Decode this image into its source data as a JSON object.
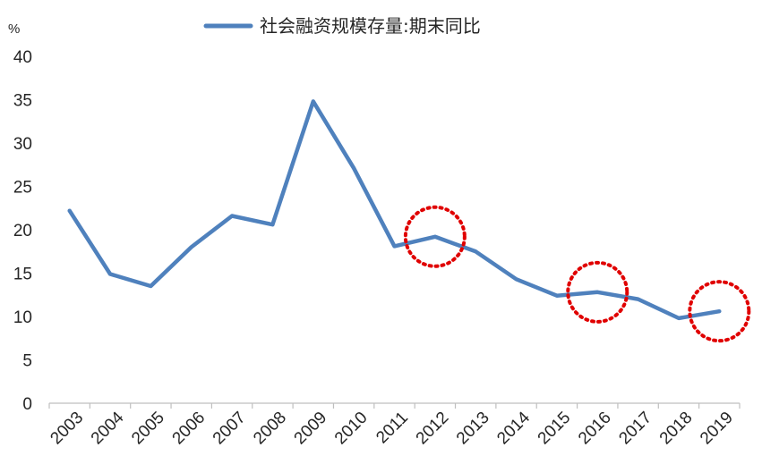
{
  "chart_data": {
    "type": "line",
    "unit_label": "%",
    "categories": [
      "2003",
      "2004",
      "2005",
      "2006",
      "2007",
      "2008",
      "2009",
      "2010",
      "2011",
      "2012",
      "2013",
      "2014",
      "2015",
      "2016",
      "2017",
      "2018",
      "2019"
    ],
    "series": [
      {
        "name": "社会融资规模存量:期末同比",
        "values": [
          22.2,
          14.9,
          13.5,
          18.0,
          21.6,
          20.6,
          34.8,
          27.1,
          18.1,
          19.2,
          17.5,
          14.3,
          12.4,
          12.8,
          12.0,
          9.8,
          10.6
        ],
        "color": "#4f81bd"
      }
    ],
    "ylim": [
      0,
      40
    ],
    "yticks": [
      0,
      5,
      10,
      15,
      20,
      25,
      30,
      35,
      40
    ],
    "grid": false,
    "legend_position": "top-center",
    "highlights": [
      {
        "category": "2012",
        "value": 19.2,
        "style": "dotted-circle",
        "color": "#e00000"
      },
      {
        "category": "2016",
        "value": 12.8,
        "style": "dotted-circle",
        "color": "#e00000"
      },
      {
        "category": "2019",
        "value": 10.6,
        "style": "dotted-circle",
        "color": "#e00000"
      }
    ],
    "axis_color": "#bfbfbf"
  }
}
